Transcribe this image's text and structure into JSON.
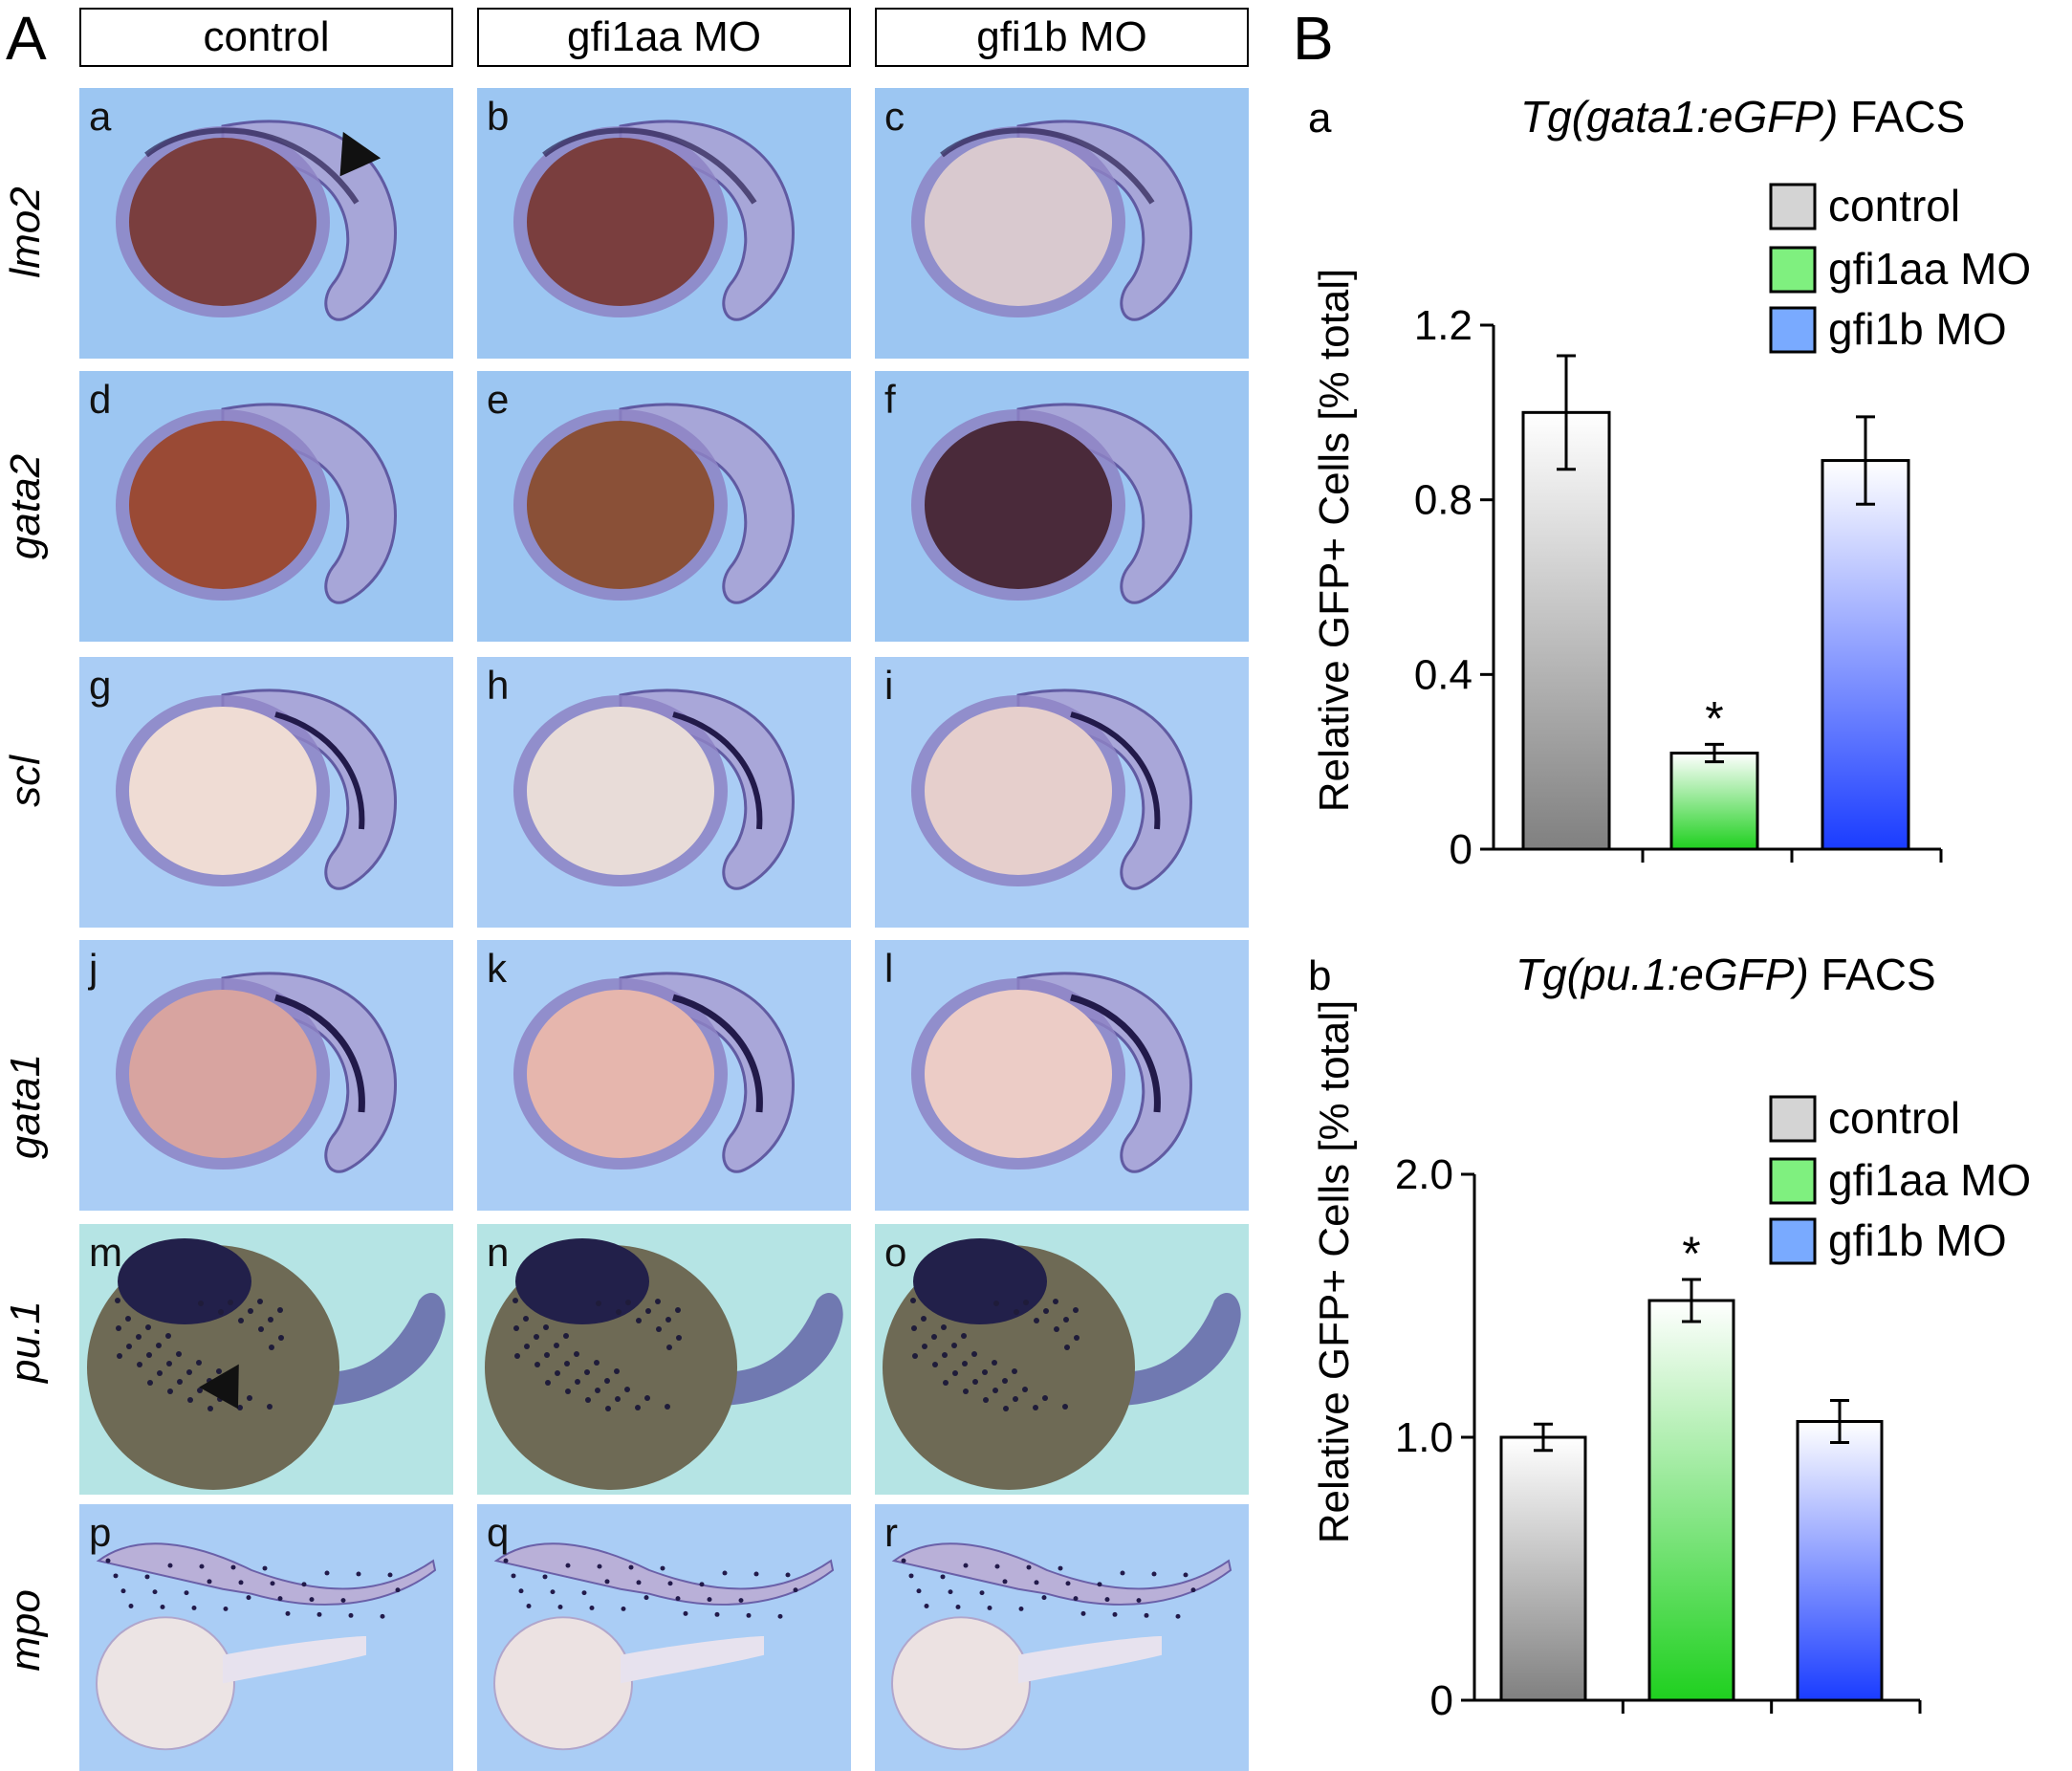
{
  "panel_A_label": "A",
  "panel_B_label": "B",
  "columns": [
    "control",
    "gfi1aa MO",
    "gfi1b MO"
  ],
  "rows": [
    "lmo2",
    "gata2",
    "scl",
    "gata1",
    "pu.1",
    "mpo"
  ],
  "sub_letters": [
    [
      "a",
      "b",
      "c"
    ],
    [
      "d",
      "e",
      "f"
    ],
    [
      "g",
      "h",
      "i"
    ],
    [
      "j",
      "k",
      "l"
    ],
    [
      "m",
      "n",
      "o"
    ],
    [
      "p",
      "q",
      "r"
    ]
  ],
  "chart_data": [
    {
      "type": "bar",
      "panel": "a",
      "title_italic": "Tg(gata1:eGFP)",
      "title_rest": " FACS",
      "ylabel": "Relative GFP+ Cells [% total]",
      "categories": [
        "control",
        "gfi1aa MO",
        "gfi1b MO"
      ],
      "values": [
        1.0,
        0.22,
        0.89
      ],
      "errors": [
        0.13,
        0.02,
        0.1
      ],
      "significant": [
        false,
        true,
        false
      ],
      "star": "*",
      "ylim": [
        0,
        1.2
      ],
      "yticks": [
        0,
        0.4,
        0.8,
        1.2
      ],
      "ytick_labels": [
        "0",
        "0.4",
        "0.8",
        "1.2"
      ],
      "legend": [
        "control",
        "gfi1aa MO",
        "gfi1b MO"
      ],
      "legend_position": "top-right"
    },
    {
      "type": "bar",
      "panel": "b",
      "title_italic": "Tg(pu.1:eGFP)",
      "title_rest": " FACS",
      "ylabel": "Relative GFP+ Cells [% total]",
      "categories": [
        "control",
        "gfi1aa MO",
        "gfi1b MO"
      ],
      "values": [
        1.0,
        1.52,
        1.06
      ],
      "errors": [
        0.05,
        0.08,
        0.08
      ],
      "significant": [
        false,
        true,
        false
      ],
      "star": "*",
      "ylim": [
        0,
        2.0
      ],
      "yticks": [
        0,
        1.0,
        2.0
      ],
      "ytick_labels": [
        "0",
        "1.0",
        "2.0"
      ],
      "legend": [
        "control",
        "gfi1aa MO",
        "gfi1b MO"
      ],
      "legend_position": "top-right"
    }
  ],
  "colors": {
    "control": "#c8c8c8",
    "gfi1aa": "#1fd01f",
    "gfi1b": "#1a3cff",
    "bg_blue": "#9cc6f2",
    "bg_teal": "#b5e4e4",
    "bg_lightblue": "#aacdf5"
  }
}
